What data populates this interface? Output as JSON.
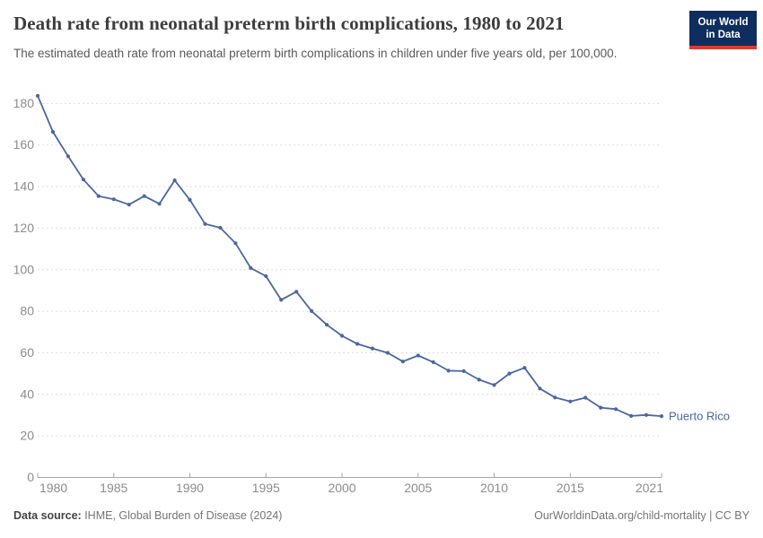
{
  "header": {
    "title": "Death rate from neonatal preterm birth complications, 1980 to 2021",
    "subtitle": "The estimated death rate from neonatal preterm birth complications in children under five years old, per 100,000.",
    "logo": {
      "line1": "Our World",
      "line2": "in Data"
    }
  },
  "chart_data": {
    "type": "line",
    "title": "Death rate from neonatal preterm birth complications, 1980 to 2021",
    "xlabel": "",
    "ylabel": "",
    "xlim": [
      1980,
      2021
    ],
    "ylim": [
      0,
      187
    ],
    "x_ticks": [
      1980,
      1985,
      1990,
      1995,
      2000,
      2005,
      2010,
      2015,
      2021
    ],
    "y_ticks": [
      0,
      20,
      40,
      60,
      80,
      100,
      120,
      140,
      160,
      180
    ],
    "grid": "horizontal-dashed",
    "legend_position": "end-of-line",
    "categories": [
      1980,
      1981,
      1982,
      1983,
      1984,
      1985,
      1986,
      1987,
      1988,
      1989,
      1990,
      1991,
      1992,
      1993,
      1994,
      1995,
      1996,
      1997,
      1998,
      1999,
      2000,
      2001,
      2002,
      2003,
      2004,
      2005,
      2006,
      2007,
      2008,
      2009,
      2010,
      2011,
      2012,
      2013,
      2014,
      2015,
      2016,
      2017,
      2018,
      2019,
      2020,
      2021
    ],
    "series": [
      {
        "name": "Puerto Rico",
        "color": "#4a67a0",
        "values": [
          183.7,
          166.3,
          154.6,
          143.4,
          135.4,
          133.9,
          131.3,
          135.4,
          131.7,
          143.0,
          133.6,
          122.0,
          120.2,
          112.7,
          100.8,
          96.9,
          85.5,
          89.4,
          80.1,
          73.5,
          68.2,
          64.3,
          62.1,
          60.0,
          55.8,
          58.7,
          55.5,
          51.4,
          51.2,
          47.1,
          44.5,
          50.0,
          52.8,
          42.8,
          38.5,
          36.6,
          38.4,
          33.6,
          32.9,
          29.6,
          30.1,
          29.5
        ]
      }
    ]
  },
  "colors": {
    "line": "#4a67a0",
    "grid": "#dedede",
    "axis": "#a5a5a5",
    "tick_label": "#8c8c8c",
    "title": "#3d3d3d",
    "subtitle": "#595959",
    "logo_bg": "#0d2e5e",
    "logo_stripe": "#dc3a32"
  },
  "footer": {
    "source_label": "Data source:",
    "source_text": " IHME, Global Burden of Disease (2024)",
    "credit": "OurWorldinData.org/child-mortality | CC BY"
  }
}
